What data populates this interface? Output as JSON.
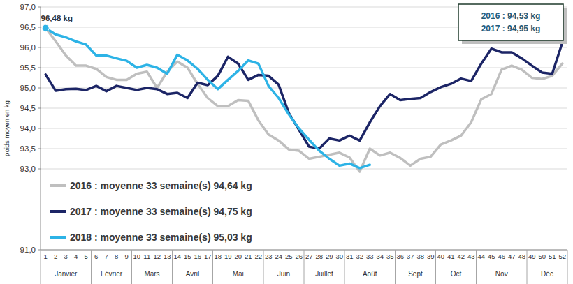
{
  "chart_data": {
    "type": "line",
    "y_label": "poids moyen en kg",
    "categories": [
      "1",
      "2",
      "3",
      "4",
      "5",
      "6",
      "7",
      "8",
      "9",
      "10",
      "11",
      "12",
      "13",
      "14",
      "15",
      "16",
      "17",
      "18",
      "19",
      "20",
      "21",
      "22",
      "23",
      "24",
      "25",
      "26",
      "27",
      "28",
      "29",
      "30",
      "31",
      "32",
      "33",
      "34",
      "35",
      "36",
      "37",
      "38",
      "39",
      "40",
      "41",
      "42",
      "43",
      "44",
      "45",
      "46",
      "47",
      "48",
      "49",
      "50",
      "51",
      "52"
    ],
    "x_groups": [
      {
        "label": "Janvier",
        "first": "1",
        "last": "5"
      },
      {
        "label": "Février",
        "first": "6",
        "last": "9"
      },
      {
        "label": "Mars",
        "first": "10",
        "last": "13"
      },
      {
        "label": "Avril",
        "first": "14",
        "last": "17"
      },
      {
        "label": "Mai",
        "first": "18",
        "last": "22"
      },
      {
        "label": "Juin",
        "first": "23",
        "last": "26"
      },
      {
        "label": "Juillet",
        "first": "27",
        "last": "30"
      },
      {
        "label": "Août",
        "first": "31",
        "last": "35"
      },
      {
        "label": "Sept",
        "first": "36",
        "last": "39"
      },
      {
        "label": "Oct",
        "first": "40",
        "last": "43"
      },
      {
        "label": "Nov",
        "first": "44",
        "last": "48"
      },
      {
        "label": "Déc",
        "first": "49",
        "last": "52"
      }
    ],
    "series": [
      {
        "name": "2016 : moyenne 33 semaine(s) 94,64 kg",
        "color": "#bfbfbf",
        "values": [
          96.48,
          96.15,
          95.8,
          95.55,
          95.55,
          95.47,
          95.27,
          95.2,
          95.2,
          95.35,
          95.4,
          95.0,
          95.4,
          95.65,
          95.5,
          95.1,
          94.75,
          94.55,
          94.55,
          94.7,
          94.68,
          94.2,
          93.85,
          93.7,
          93.48,
          93.45,
          93.25,
          93.3,
          93.35,
          93.4,
          93.28,
          92.93,
          93.5,
          93.33,
          93.4,
          93.27,
          93.08,
          93.25,
          93.3,
          93.6,
          93.7,
          93.82,
          94.15,
          94.72,
          94.85,
          95.45,
          95.55,
          95.45,
          95.25,
          95.22,
          95.3,
          95.6
        ]
      },
      {
        "name": "2017 : moyenne 33 semaine(s) 94,75 kg",
        "color": "#1c2566",
        "values": [
          95.33,
          94.93,
          94.97,
          94.98,
          94.95,
          95.05,
          94.92,
          95.05,
          95.0,
          94.95,
          95.0,
          94.97,
          94.85,
          94.88,
          94.75,
          95.13,
          95.07,
          95.3,
          95.77,
          95.6,
          95.2,
          95.32,
          95.3,
          95.08,
          94.38,
          93.97,
          93.55,
          93.5,
          93.75,
          93.7,
          93.82,
          93.7,
          94.15,
          94.55,
          94.85,
          94.7,
          94.73,
          94.75,
          94.9,
          95.02,
          95.1,
          95.23,
          95.17,
          95.6,
          95.97,
          95.88,
          95.88,
          95.73,
          95.55,
          95.38,
          95.35,
          96.12
        ]
      },
      {
        "name": "2018 : moyenne 33 semaine(s) 95,03 kg",
        "color": "#2db3e6",
        "values": [
          96.48,
          96.32,
          96.25,
          96.15,
          96.07,
          95.8,
          95.8,
          95.73,
          95.67,
          95.5,
          95.57,
          95.5,
          95.35,
          95.82,
          95.68,
          95.47,
          95.2,
          94.97,
          95.2,
          95.42,
          95.68,
          95.6,
          95.05,
          94.75,
          94.35,
          94.0,
          93.72,
          93.45,
          93.25,
          93.08,
          93.13,
          93.02,
          93.1,
          null,
          null,
          null,
          null,
          null,
          null,
          null,
          null,
          null,
          null,
          null,
          null,
          null,
          null,
          null,
          null,
          null,
          null,
          null
        ]
      }
    ],
    "ylim": [
      91,
      97
    ],
    "yticks": [
      {
        "value": 91,
        "label": "91,0"
      },
      {
        "value": 93,
        "label": "93,0"
      },
      {
        "value": 93.5,
        "label": "93,5"
      },
      {
        "value": 94,
        "label": "94,0"
      },
      {
        "value": 94.5,
        "label": "94,5"
      },
      {
        "value": 95,
        "label": "95,0"
      },
      {
        "value": 95.5,
        "label": "95,5"
      },
      {
        "value": 96,
        "label": "96,0"
      },
      {
        "value": 96.5,
        "label": "96,5"
      },
      {
        "value": 97,
        "label": "97,0"
      }
    ],
    "grid": true,
    "legend": "lower left",
    "annotations": [
      {
        "text": "96,48 kg",
        "x": "1",
        "y": 96.48
      },
      {
        "text": "2016 : 94,53 kg"
      },
      {
        "text": "2017 : 94,95 kg"
      }
    ]
  }
}
